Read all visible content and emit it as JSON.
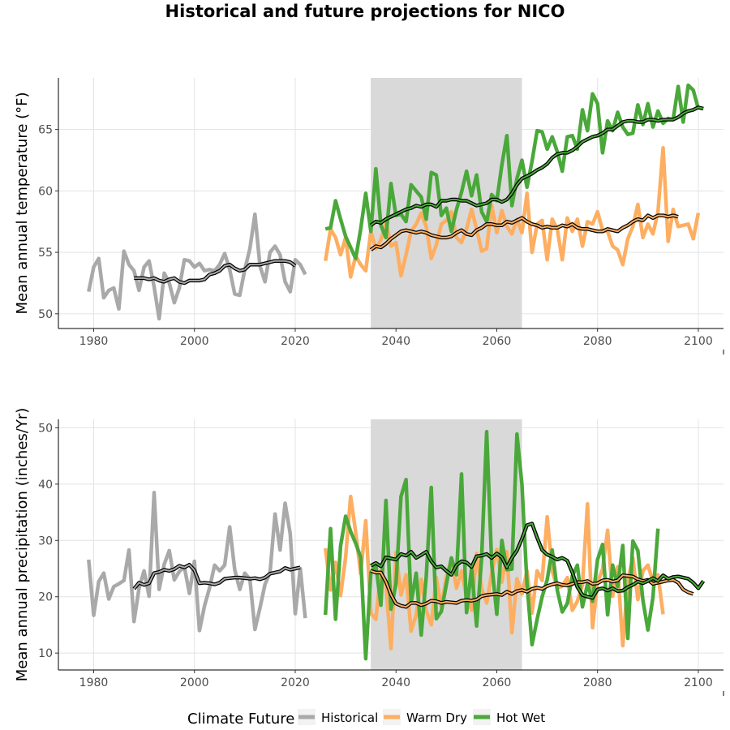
{
  "title": "Historical and future projections for NICO",
  "colors": {
    "Historical": "#a9a9a9",
    "Warm Dry": "#fdae61",
    "Hot Wet": "#4aa83a",
    "shade": "#d9d9d9",
    "rolling": "#000000"
  },
  "legend": {
    "title": "Climate Future",
    "entries": [
      "Historical",
      "Warm Dry",
      "Hot Wet"
    ]
  },
  "chart_data": [
    {
      "type": "line",
      "ylabel": "Mean annual temperature (°F)",
      "xlabel": "",
      "xlim": [
        1973,
        2105
      ],
      "ylim": [
        48.8,
        69.2
      ],
      "xticks": [
        1980,
        2000,
        2020,
        2040,
        2060,
        2080,
        2100
      ],
      "yticks": [
        50,
        55,
        60,
        65
      ],
      "shaded_period": [
        2035,
        2065
      ],
      "series": [
        {
          "name": "Historical",
          "x_start": 1979,
          "values": [
            51.8,
            53.8,
            54.5,
            51.3,
            51.9,
            52.1,
            50.4,
            55.1,
            54.0,
            53.5,
            51.9,
            53.8,
            54.3,
            52.2,
            49.6,
            53.3,
            52.5,
            50.9,
            52.1,
            54.4,
            54.3,
            53.8,
            54.1,
            53.5,
            53.6,
            53.5,
            54.0,
            54.9,
            53.6,
            51.6,
            51.5,
            53.6,
            55.3,
            58.1,
            53.9,
            52.6,
            55.0,
            55.5,
            54.8,
            52.6,
            51.8,
            54.4,
            54.0,
            53.2
          ]
        },
        {
          "name": "Warm Dry",
          "x_start": 2026,
          "values": [
            54.3,
            56.9,
            56.2,
            54.8,
            56.2,
            53.0,
            54.7,
            54.0,
            53.5,
            56.7,
            55.3,
            56.0,
            57.5,
            55.5,
            55.8,
            53.1,
            54.8,
            56.7,
            57.3,
            58.2,
            57.1,
            54.5,
            55.6,
            57.3,
            57.6,
            58.3,
            56.2,
            55.8,
            56.9,
            58.5,
            56.9,
            55.1,
            55.3,
            58.8,
            56.6,
            58.4,
            57.1,
            56.5,
            57.7,
            56.6,
            59.8,
            55.0,
            57.3,
            57.6,
            54.4,
            57.7,
            56.9,
            54.4,
            57.8,
            56.7,
            57.7,
            55.5,
            57.5,
            57.3,
            58.3,
            56.8,
            56.7,
            55.5,
            55.2,
            54.0,
            56.1,
            57.1,
            58.9,
            56.2,
            57.3,
            56.5,
            58.3,
            63.5,
            55.9,
            58.5,
            57.1,
            57.2,
            57.3,
            56.1,
            58.2
          ]
        },
        {
          "name": "Hot Wet",
          "x_start": 2026,
          "values": [
            56.9,
            57.0,
            59.2,
            57.7,
            56.3,
            55.4,
            54.5,
            56.9,
            59.8,
            56.7,
            61.8,
            57.2,
            56.2,
            60.6,
            58.0,
            58.1,
            57.5,
            60.5,
            60.0,
            59.5,
            57.7,
            61.5,
            61.3,
            58.0,
            58.6,
            56.7,
            58.5,
            59.9,
            61.6,
            59.6,
            61.3,
            58.3,
            57.5,
            59.7,
            59.2,
            62.1,
            64.5,
            58.8,
            61.0,
            62.5,
            60.3,
            62.4,
            64.9,
            64.8,
            63.4,
            64.4,
            63.2,
            61.6,
            64.4,
            64.5,
            63.4,
            66.6,
            64.9,
            67.9,
            67.1,
            63.1,
            65.7,
            64.9,
            66.4,
            65.2,
            64.6,
            64.7,
            67.0,
            65.4,
            67.1,
            65.2,
            66.5,
            65.5,
            65.9,
            65.8,
            68.5,
            65.6,
            68.6,
            68.2,
            66.7
          ]
        },
        {
          "name": "Historical rolling mean",
          "x_start": 1988,
          "values": [
            52.9,
            52.9,
            52.9,
            52.8,
            52.9,
            52.7,
            52.6,
            52.8,
            52.9,
            52.6,
            52.5,
            52.7,
            52.7,
            52.7,
            52.8,
            53.2,
            53.3,
            53.5,
            53.9,
            54.0,
            53.7,
            53.5,
            53.6,
            54.0,
            54.0,
            54.0,
            54.1,
            54.2,
            54.3,
            54.3,
            54.3,
            54.2,
            53.9
          ]
        },
        {
          "name": "Warm Dry rolling mean",
          "x_start": 2035,
          "values": [
            55.2,
            55.5,
            55.4,
            55.7,
            56.1,
            56.4,
            56.7,
            56.8,
            56.7,
            56.6,
            56.7,
            56.6,
            56.4,
            56.3,
            56.2,
            56.2,
            56.3,
            56.6,
            56.8,
            56.5,
            56.4,
            56.8,
            57.0,
            57.3,
            57.3,
            57.2,
            57.2,
            57.5,
            57.4,
            57.6,
            57.8,
            57.5,
            57.3,
            57.2,
            57.0,
            57.1,
            57.0,
            57.0,
            57.2,
            57.1,
            57.3,
            57.0,
            56.9,
            56.9,
            56.8,
            56.7,
            56.7,
            56.9,
            56.8,
            56.7,
            57.0,
            57.2,
            57.5,
            57.7,
            57.6,
            58.0,
            57.8,
            58.0,
            58.0,
            57.9,
            58.0,
            57.9
          ]
        },
        {
          "name": "Hot Wet rolling mean",
          "x_start": 2035,
          "values": [
            57.2,
            57.5,
            57.4,
            57.7,
            57.9,
            58.1,
            58.3,
            58.5,
            58.6,
            58.8,
            58.7,
            58.9,
            58.9,
            58.7,
            59.2,
            59.2,
            59.3,
            59.3,
            59.2,
            59.2,
            59.0,
            58.8,
            58.9,
            59.0,
            59.3,
            59.3,
            59.1,
            59.3,
            59.8,
            60.5,
            61.0,
            61.2,
            61.4,
            61.7,
            61.9,
            62.2,
            62.7,
            63.0,
            63.1,
            63.1,
            63.3,
            63.6,
            64.0,
            64.2,
            64.4,
            64.5,
            64.7,
            65.0,
            65.0,
            65.3,
            65.6,
            65.7,
            65.7,
            65.6,
            65.6,
            65.8,
            65.8,
            65.7,
            65.8,
            65.8,
            65.8,
            66.0,
            66.3,
            66.5,
            66.6,
            66.8,
            66.7
          ]
        }
      ]
    },
    {
      "type": "line",
      "ylabel": "Mean annual precipitation (inches/Yr)",
      "xlabel": "",
      "xlim": [
        1973,
        2105
      ],
      "ylim": [
        7,
        51.5
      ],
      "xticks": [
        1980,
        2000,
        2020,
        2040,
        2060,
        2080,
        2100
      ],
      "yticks": [
        10,
        20,
        30,
        40,
        50
      ],
      "shaded_period": [
        2035,
        2065
      ],
      "series": [
        {
          "name": "Historical",
          "x_start": 1979,
          "values": [
            26.6,
            16.7,
            22.7,
            24.2,
            19.6,
            21.8,
            22.3,
            22.9,
            28.3,
            15.6,
            21.5,
            24.6,
            20.1,
            38.5,
            21.3,
            25.8,
            28.2,
            23.0,
            24.5,
            25.3,
            20.6,
            26.3,
            14.0,
            18.4,
            21.6,
            25.6,
            24.6,
            25.6,
            32.4,
            24.8,
            21.3,
            24.2,
            23.1,
            14.2,
            18.0,
            22.2,
            24.3,
            34.7,
            28.3,
            36.6,
            31.2,
            17.0,
            25.0,
            16.2
          ]
        },
        {
          "name": "Warm Dry",
          "x_start": 2026,
          "values": [
            28.6,
            21.2,
            26.1,
            20.2,
            27.0,
            37.8,
            31.5,
            24.1,
            33.5,
            17.1,
            16.0,
            24.7,
            22.2,
            10.8,
            27.9,
            20.3,
            23.9,
            13.9,
            16.8,
            23.1,
            17.5,
            15.0,
            23.4,
            18.1,
            23.6,
            26.6,
            21.5,
            24.6,
            19.8,
            17.6,
            27.7,
            21.5,
            18.9,
            24.2,
            28.4,
            22.6,
            28.0,
            13.6,
            23.2,
            20.5,
            24.6,
            17.1,
            24.6,
            22.9,
            34.2,
            24.6,
            21.5,
            21.9,
            23.4,
            17.6,
            19.2,
            22.1,
            36.5,
            14.5,
            22.6,
            24.9,
            31.8,
            20.1,
            25.3,
            11.3,
            22.9,
            26.9,
            19.5,
            24.6,
            25.6,
            22.7,
            23.9,
            16.9
          ]
        },
        {
          "name": "Hot Wet",
          "x_start": 2026,
          "values": [
            16.8,
            32.1,
            16.0,
            29.0,
            34.3,
            31.6,
            29.5,
            27.0,
            9.0,
            24.3,
            25.6,
            18.5,
            37.1,
            17.8,
            22.3,
            37.8,
            40.8,
            18.9,
            24.2,
            13.2,
            23.6,
            39.4,
            16.1,
            17.4,
            22.2,
            26.9,
            23.9,
            41.8,
            17.2,
            25.1,
            14.8,
            27.0,
            49.3,
            25.9,
            16.9,
            30.0,
            24.8,
            24.9,
            48.9,
            39.9,
            22.3,
            11.5,
            16.0,
            20.0,
            23.0,
            28.3,
            21.2,
            17.3,
            18.8,
            23.7,
            25.6,
            18.2,
            22.3,
            19.2,
            26.6,
            29.3,
            16.8,
            25.6,
            21.8,
            29.1,
            12.6,
            29.9,
            28.2,
            19.4,
            14.1,
            19.9,
            32.1
          ]
        },
        {
          "name": "Historical rolling mean",
          "x_start": 1988,
          "values": [
            21.4,
            22.5,
            22.1,
            22.4,
            24.2,
            24.4,
            24.8,
            24.6,
            24.9,
            25.5,
            25.2,
            25.7,
            24.7,
            22.4,
            22.5,
            22.4,
            22.2,
            22.5,
            23.2,
            23.3,
            23.4,
            23.4,
            23.3,
            23.2,
            23.3,
            23.1,
            23.4,
            24.1,
            24.3,
            24.5,
            25.1,
            24.8,
            25.0,
            25.2
          ]
        },
        {
          "name": "Warm Dry rolling mean",
          "x_start": 2035,
          "values": [
            24.6,
            24.3,
            24.3,
            22.7,
            20.4,
            18.8,
            18.4,
            18.2,
            18.9,
            18.9,
            18.5,
            18.8,
            19.3,
            19.2,
            18.9,
            19.1,
            19.0,
            18.9,
            19.3,
            19.4,
            19.3,
            19.5,
            20.1,
            20.3,
            20.4,
            20.5,
            20.3,
            20.9,
            20.5,
            21.0,
            21.2,
            20.9,
            21.4,
            21.6,
            21.4,
            21.9,
            22.2,
            22.4,
            22.1,
            22.0,
            22.3,
            22.6,
            22.6,
            22.8,
            22.3,
            22.4,
            22.9,
            23.0,
            22.7,
            22.9,
            23.8,
            23.7,
            23.6,
            23.1,
            22.8,
            23.0,
            22.3,
            22.5,
            22.7,
            22.9,
            23.0,
            22.5,
            21.3,
            20.8,
            20.5
          ]
        },
        {
          "name": "Hot Wet rolling mean",
          "x_start": 2035,
          "values": [
            25.5,
            26.0,
            25.4,
            27.0,
            26.8,
            26.6,
            27.6,
            27.3,
            28.0,
            26.9,
            27.4,
            28.0,
            26.3,
            25.2,
            25.4,
            24.6,
            23.9,
            25.6,
            26.3,
            26.1,
            25.3,
            27.2,
            27.3,
            27.6,
            26.9,
            27.7,
            27.0,
            25.2,
            26.9,
            28.2,
            30.3,
            32.7,
            33.0,
            30.5,
            28.3,
            27.5,
            27.1,
            26.6,
            26.9,
            26.4,
            24.3,
            21.7,
            20.3,
            20.0,
            19.8,
            21.3,
            21.5,
            21.1,
            21.5,
            21.0,
            21.1,
            21.7,
            22.1,
            22.7,
            22.4,
            22.8,
            23.3,
            22.8,
            23.8,
            23.2,
            23.5,
            23.6,
            23.4,
            23.2,
            22.5,
            21.5,
            22.8
          ]
        }
      ]
    }
  ]
}
